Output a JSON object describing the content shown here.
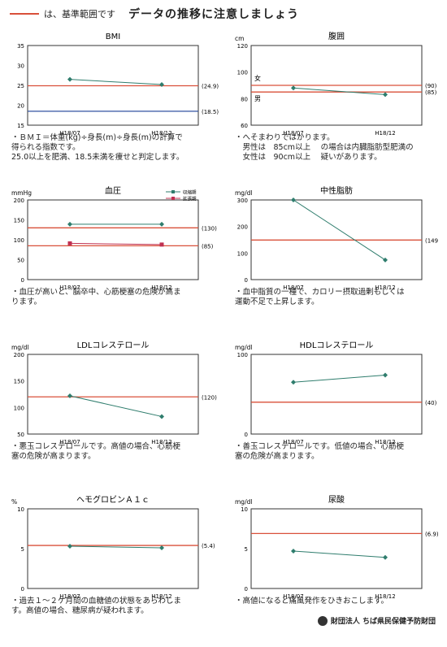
{
  "header": {
    "legend_text": "は、基準範囲です",
    "title": "データの推移に注意しましょう",
    "ref_color": "#d9503a"
  },
  "footer": {
    "org": "財団法人 ちば県民保健予防財団"
  },
  "chart_data": [
    {
      "type": "line",
      "title": "BMI",
      "unit": "",
      "x": [
        "H18/07",
        "H18/12"
      ],
      "ylim": [
        15,
        35
      ],
      "yticks": [
        15,
        20,
        25,
        30,
        35
      ],
      "series": [
        {
          "values": [
            26.5,
            25.2
          ],
          "color": "#2f7d6d",
          "marker": "diamond"
        }
      ],
      "references": [
        {
          "value": 24.9,
          "label": "(24.9)",
          "color": "#d9503a"
        },
        {
          "value": 18.5,
          "label": "(18.5)",
          "color": "#3050a0"
        }
      ],
      "notes": "・ＢＭＩ＝体重(kg)÷身長(m)÷身長(m)の計算で\n得られる指数です。\n25.0以上を肥満、18.5未満を痩せと判定します。"
    },
    {
      "type": "line",
      "title": "腹囲",
      "unit": "cm",
      "x": [
        "H18/07",
        "H18/12"
      ],
      "ylim": [
        60,
        120
      ],
      "yticks": [
        60,
        80,
        100,
        120
      ],
      "series": [
        {
          "values": [
            88,
            83
          ],
          "color": "#2f7d6d",
          "marker": "diamond"
        }
      ],
      "references": [
        {
          "value": 90,
          "label": "(90)",
          "color": "#d9503a",
          "side": "女"
        },
        {
          "value": 85,
          "label": "(85)",
          "color": "#d9503a",
          "side": "男"
        }
      ],
      "notes": "・へそまわりではかります。\n　男性は　85cm以上　 の場合は内臓脂肪型肥満の\n　女性は　90cm以上　 疑いがあります。"
    },
    {
      "type": "line",
      "title": "血圧",
      "unit": "mmHg",
      "x": [
        "H18/07",
        "H18/12"
      ],
      "ylim": [
        0,
        200
      ],
      "yticks": [
        0,
        50,
        100,
        150,
        200
      ],
      "series": [
        {
          "name": "収縮期",
          "values": [
            139,
            139
          ],
          "color": "#2f7d6d",
          "marker": "diamond"
        },
        {
          "name": "拡張期",
          "values": [
            91,
            88
          ],
          "color": "#c03050",
          "marker": "square"
        }
      ],
      "references": [
        {
          "value": 130,
          "label": "(130)",
          "color": "#d9503a"
        },
        {
          "value": 85,
          "label": "(85)",
          "color": "#d9503a"
        }
      ],
      "notes": "・血圧が高いと、脳卒中、心筋梗塞の危険が高ま\nります。"
    },
    {
      "type": "line",
      "title": "中性脂肪",
      "unit": "mg/dl",
      "x": [
        "H18/07",
        "H18/12"
      ],
      "ylim": [
        0,
        300
      ],
      "yticks": [
        0,
        100,
        200,
        300
      ],
      "series": [
        {
          "values": [
            300,
            74
          ],
          "color": "#2f7d6d",
          "marker": "diamond"
        }
      ],
      "references": [
        {
          "value": 149,
          "label": "(149",
          "color": "#d9503a"
        }
      ],
      "notes": "・血中脂質の一種で、カロリー摂取過剰もしくは\n運動不足で上昇します。"
    },
    {
      "type": "line",
      "title": "LDLコレステロール",
      "unit": "mg/dl",
      "x": [
        "H18/07",
        "H18/12"
      ],
      "ylim": [
        50,
        200
      ],
      "yticks": [
        50,
        100,
        150,
        200
      ],
      "series": [
        {
          "values": [
            122,
            83
          ],
          "color": "#2f7d6d",
          "marker": "diamond"
        }
      ],
      "references": [
        {
          "value": 120,
          "label": "(120)",
          "color": "#d9503a"
        }
      ],
      "notes": "・悪玉コレステロールです。高値の場合、心筋梗\n塞の危険が高まります。"
    },
    {
      "type": "line",
      "title": "HDLコレステロール",
      "unit": "mg/dl",
      "x": [
        "H18/07",
        "H18/12"
      ],
      "ylim": [
        0,
        100
      ],
      "yticks": [
        0,
        100
      ],
      "series": [
        {
          "values": [
            65,
            74
          ],
          "color": "#2f7d6d",
          "marker": "diamond"
        }
      ],
      "references": [
        {
          "value": 40,
          "label": "(40)",
          "color": "#d9503a"
        }
      ],
      "notes": "・善玉コレステロールです。低値の場合、心筋梗\n塞の危険が高まります。"
    },
    {
      "type": "line",
      "title": "ヘモグロビンＡ１ｃ",
      "unit": "%",
      "x": [
        "H18/07",
        "H18/12"
      ],
      "ylim": [
        0,
        10
      ],
      "yticks": [
        0,
        5,
        10
      ],
      "series": [
        {
          "values": [
            5.3,
            5.1
          ],
          "color": "#2f7d6d",
          "marker": "diamond"
        }
      ],
      "references": [
        {
          "value": 5.4,
          "label": "(5.4)",
          "color": "#d9503a"
        }
      ],
      "notes": "・過去１～２ケ月間の血糖値の状態をあらわしま\nす。高値の場合、糖尿病が疑われます。"
    },
    {
      "type": "line",
      "title": "尿酸",
      "unit": "mg/dl",
      "x": [
        "H18/07",
        "H18/12"
      ],
      "ylim": [
        0,
        10
      ],
      "yticks": [
        0,
        5,
        10
      ],
      "series": [
        {
          "values": [
            4.7,
            3.9
          ],
          "color": "#2f7d6d",
          "marker": "diamond"
        }
      ],
      "references": [
        {
          "value": 6.9,
          "label": "(6.9)",
          "color": "#d9503a"
        }
      ],
      "notes": "・高値になると痛風発作をひきおこします。"
    }
  ]
}
